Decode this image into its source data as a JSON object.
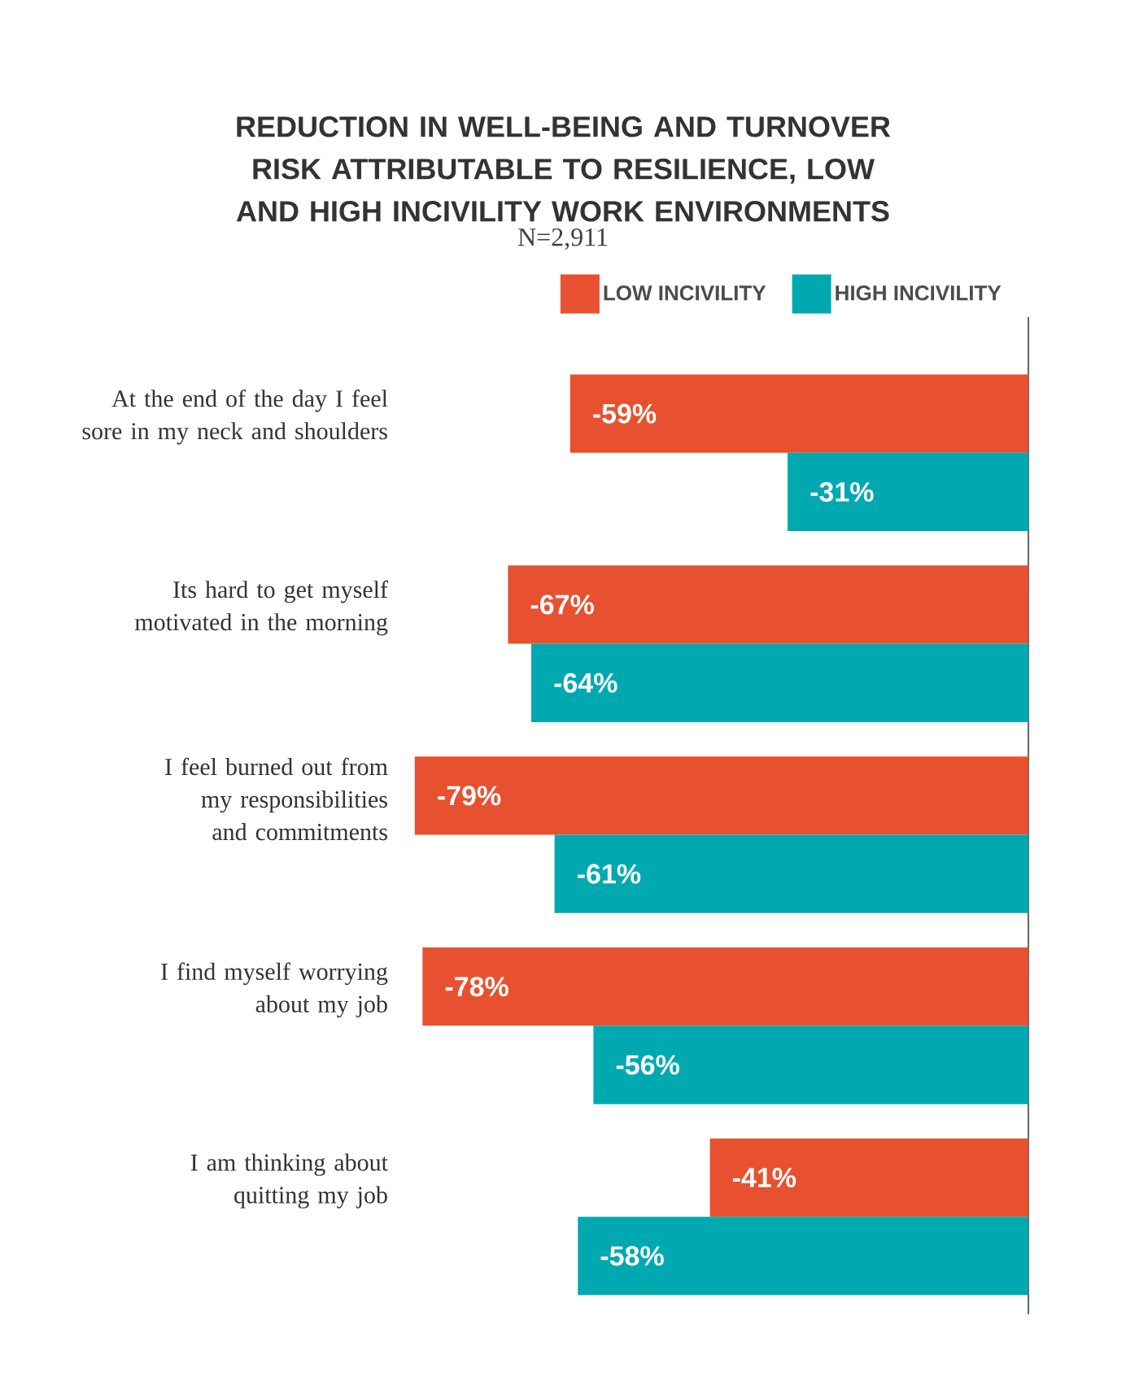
{
  "chart_data": {
    "type": "bar",
    "orientation": "horizontal",
    "title": "REDUCTION IN WELL-BEING AND TURNOVER RISK ATTRIBUTABLE TO RESILIENCE, LOW AND HIGH INCIVILITY WORK ENVIRONMENTS",
    "subtitle": "N=2,911",
    "categories": [
      "At the end of the day I feel sore in my neck and shoulders",
      "Its hard to get myself motivated in the morning",
      "I feel burned out from my responsibilities and commitments",
      "I find myself worrying about my job",
      "I am thinking about quitting my job"
    ],
    "series": [
      {
        "name": "LOW INCIVILITY",
        "color": "#e8512f",
        "values": [
          -59,
          -67,
          -79,
          -78,
          -41
        ],
        "value_labels": [
          "-59%",
          "-67%",
          "-79%",
          "-78%",
          "-41%"
        ]
      },
      {
        "name": "HIGH INCIVILITY",
        "color": "#00a9b0",
        "values": [
          -31,
          -64,
          -61,
          -56,
          -58
        ],
        "value_labels": [
          "-31%",
          "-64%",
          "-61%",
          "-56%",
          "-58%"
        ]
      }
    ],
    "legend": "top right",
    "tick_labels": "y"
  }
}
